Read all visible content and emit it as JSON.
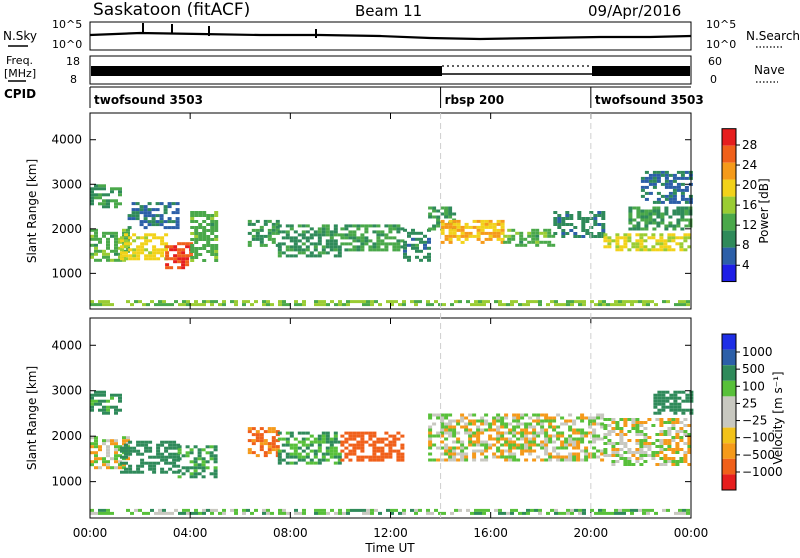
{
  "header": {
    "station": "Saskatoon (fitACF)",
    "beam": "Beam 11",
    "date": "09/Apr/2016"
  },
  "top_panels": {
    "nsky_label": "N.Sky",
    "nsky_ticks": [
      "10^5",
      "10^0"
    ],
    "nsearch_label": "N.Search",
    "nsearch_ticks": [
      "10^5",
      "10^0"
    ],
    "freq_label_line1": "Freq.",
    "freq_label_line2": "[MHz]",
    "freq_ticks": [
      "18",
      "8"
    ],
    "nave_label": "Nave",
    "nave_ticks": [
      "60",
      "0"
    ],
    "cpid_label": "CPID"
  },
  "cpid_segments": [
    {
      "label": "twofsound 3503",
      "start_hour": 0
    },
    {
      "label": "rbsp 200",
      "start_hour": 14
    },
    {
      "label": "twofsound 3503",
      "start_hour": 20
    }
  ],
  "colors": {
    "power_scale": [
      "#1e1ee6",
      "#2c5fa8",
      "#2f8a5a",
      "#4aa84a",
      "#9acc33",
      "#f2d21a",
      "#f59a1a",
      "#f0601a",
      "#e61e1e"
    ],
    "velocity_scale": [
      "#e61e1e",
      "#f0601a",
      "#f59a1a",
      "#f2c21a",
      "#c8c8c0",
      "#c8c8c0",
      "#58c03a",
      "#2f8a5a",
      "#2c5fa8",
      "#1e2ee6"
    ]
  },
  "chart_data": [
    {
      "type": "heatmap",
      "title": "",
      "xlabel": "Time UT",
      "ylabel": "Slant Range [km]",
      "x_ticks": [
        "00:00",
        "04:00",
        "08:00",
        "12:00",
        "16:00",
        "20:00",
        "00:00"
      ],
      "xlim": [
        0,
        24
      ],
      "y_ticks": [
        "1000",
        "2000",
        "3000",
        "4000"
      ],
      "ylim": [
        200,
        4600
      ],
      "colorbar_label": "Power [dB]",
      "colorbar_ticks": [
        "4",
        "8",
        "12",
        "16",
        "20",
        "24",
        "28"
      ],
      "colorbar_range": [
        0,
        30
      ],
      "bands": [
        {
          "t0": 0.0,
          "t1": 1.2,
          "r0": 2500,
          "r1": 3000,
          "value": 10
        },
        {
          "t0": 0.0,
          "t1": 1.5,
          "r0": 1300,
          "r1": 2000,
          "value": 12
        },
        {
          "t0": 1.2,
          "t1": 3.0,
          "r0": 1300,
          "r1": 1900,
          "value": 18
        },
        {
          "t0": 3.0,
          "t1": 4.0,
          "r0": 1100,
          "r1": 1700,
          "value": 26
        },
        {
          "t0": 4.0,
          "t1": 5.0,
          "r0": 1300,
          "r1": 2400,
          "value": 12
        },
        {
          "t0": 1.5,
          "t1": 3.5,
          "r0": 2000,
          "r1": 2600,
          "value": 6
        },
        {
          "t0": 6.3,
          "t1": 7.5,
          "r0": 1600,
          "r1": 2200,
          "value": 10
        },
        {
          "t0": 7.5,
          "t1": 10.0,
          "r0": 1400,
          "r1": 2100,
          "value": 9
        },
        {
          "t0": 10.0,
          "t1": 12.5,
          "r0": 1500,
          "r1": 2100,
          "value": 11
        },
        {
          "t0": 12.5,
          "t1": 13.5,
          "r0": 1300,
          "r1": 2000,
          "value": 8
        },
        {
          "t0": 13.5,
          "t1": 14.5,
          "r0": 2000,
          "r1": 2500,
          "value": 10
        },
        {
          "t0": 14.0,
          "t1": 16.5,
          "r0": 1700,
          "r1": 2200,
          "value": 20
        },
        {
          "t0": 16.5,
          "t1": 18.5,
          "r0": 1600,
          "r1": 2000,
          "value": 12
        },
        {
          "t0": 18.5,
          "t1": 20.5,
          "r0": 1800,
          "r1": 2400,
          "value": 8
        },
        {
          "t0": 20.5,
          "t1": 24.0,
          "r0": 1500,
          "r1": 1900,
          "value": 17
        },
        {
          "t0": 21.5,
          "t1": 24.0,
          "r0": 2000,
          "r1": 2500,
          "value": 10
        },
        {
          "t0": 22.0,
          "t1": 24.0,
          "r0": 2600,
          "r1": 3300,
          "value": 6
        },
        {
          "t0": 0.0,
          "t1": 24.0,
          "r0": 300,
          "r1": 400,
          "value": 14
        }
      ]
    },
    {
      "type": "heatmap",
      "title": "",
      "xlabel": "Time UT",
      "ylabel": "Slant Range [km]",
      "x_ticks": [
        "00:00",
        "04:00",
        "08:00",
        "12:00",
        "16:00",
        "20:00",
        "00:00"
      ],
      "xlim": [
        0,
        24
      ],
      "y_ticks": [
        "1000",
        "2000",
        "3000",
        "4000"
      ],
      "ylim": [
        200,
        4600
      ],
      "colorbar_label": "Velocity [m s⁻¹]",
      "colorbar_ticks": [
        "1000",
        "500",
        "100",
        "25",
        "−25",
        "−100",
        "−500",
        "−1000"
      ],
      "colorbar_range": [
        -1000,
        1000
      ],
      "bands": [
        {
          "t0": 0.0,
          "t1": 1.2,
          "r0": 2500,
          "r1": 3000,
          "value": 150
        },
        {
          "t0": 0.0,
          "t1": 1.5,
          "r0": 1300,
          "r1": 2000,
          "value": 0
        },
        {
          "t0": 1.2,
          "t1": 3.5,
          "r0": 1200,
          "r1": 1900,
          "value": 200
        },
        {
          "t0": 3.5,
          "t1": 5.0,
          "r0": 1100,
          "r1": 1800,
          "value": 120
        },
        {
          "t0": 6.3,
          "t1": 7.5,
          "r0": 1600,
          "r1": 2200,
          "value": -120
        },
        {
          "t0": 7.5,
          "t1": 10.0,
          "r0": 1400,
          "r1": 2100,
          "value": 100
        },
        {
          "t0": 10.0,
          "t1": 12.5,
          "r0": 1500,
          "r1": 2100,
          "value": -300
        },
        {
          "t0": 13.5,
          "t1": 20.5,
          "r0": 1500,
          "r1": 2500,
          "value": 0
        },
        {
          "t0": 20.5,
          "t1": 24.0,
          "r0": 1400,
          "r1": 2400,
          "value": 0
        },
        {
          "t0": 22.5,
          "t1": 24.0,
          "r0": 2500,
          "r1": 3000,
          "value": 300
        },
        {
          "t0": 0.0,
          "t1": 24.0,
          "r0": 300,
          "r1": 400,
          "value": 60
        }
      ]
    }
  ]
}
